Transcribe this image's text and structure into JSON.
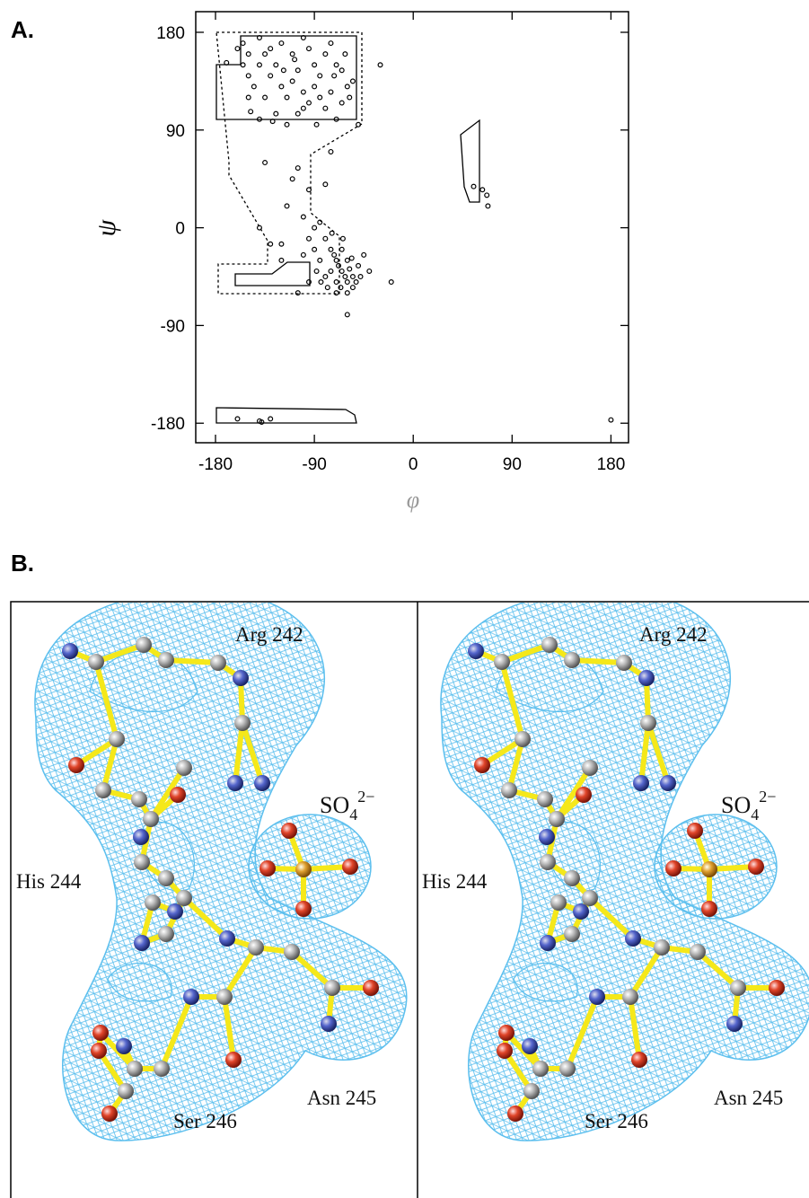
{
  "label_a": "A.",
  "label_b": "B.",
  "chart_data": {
    "type": "scatter",
    "x_label": "φ",
    "y_label": "ψ",
    "xlim": [
      -198,
      196
    ],
    "ylim": [
      -198,
      199
    ],
    "xticks": [
      -180,
      -90,
      0,
      90,
      180
    ],
    "yticks": [
      -180,
      -90,
      0,
      90,
      180
    ],
    "series": [
      {
        "color": "#000000",
        "x": [
          -155,
          -150,
          -140,
          -130,
          -125,
          -120,
          -110,
          -105,
          -100,
          -95,
          -90,
          -85,
          -80,
          -75,
          -70,
          -65,
          -60,
          -55,
          -150,
          -145,
          -140,
          -135,
          -130,
          -120,
          -115,
          -110,
          -100,
          -95,
          -90,
          -85,
          -80,
          -75,
          -70,
          -65,
          -140,
          -125,
          -115,
          -105,
          -100,
          -155,
          -170,
          -150,
          -160,
          -118,
          -108,
          -72,
          -62,
          -58,
          -50,
          -30,
          -135,
          -128,
          -88,
          -148,
          -135,
          -110,
          -95,
          -80,
          -115,
          -100,
          -90,
          -140,
          -120,
          -75,
          -105,
          -85,
          -80,
          -75,
          -70,
          -65,
          -60,
          -55,
          -50,
          -45,
          -70,
          -75,
          -65,
          -60,
          -55,
          -60,
          -70,
          -80,
          -85,
          -90,
          -95,
          -68,
          -62,
          -58,
          -52,
          -48,
          -66,
          -72,
          -78,
          -84,
          -20,
          -40,
          -60,
          -105,
          -120,
          -130,
          -100,
          -56,
          -64,
          -74,
          -88,
          -95,
          55,
          63,
          67,
          68,
          -160,
          -140,
          -138,
          -130,
          180
        ],
        "y": [
          170,
          160,
          175,
          165,
          150,
          170,
          160,
          145,
          175,
          165,
          150,
          140,
          160,
          170,
          150,
          145,
          130,
          135,
          140,
          130,
          150,
          120,
          140,
          130,
          120,
          135,
          125,
          115,
          130,
          120,
          110,
          125,
          100,
          115,
          100,
          105,
          95,
          105,
          110,
          150,
          152,
          120,
          165,
          145,
          155,
          140,
          160,
          120,
          95,
          150,
          160,
          98,
          95,
          107,
          60,
          45,
          35,
          40,
          20,
          10,
          0,
          0,
          -15,
          70,
          55,
          5,
          -10,
          -20,
          -30,
          -40,
          -50,
          -45,
          -35,
          -25,
          -50,
          -40,
          -20,
          -30,
          -55,
          -60,
          -60,
          -45,
          -30,
          -20,
          -10,
          -35,
          -45,
          -38,
          -50,
          -45,
          -55,
          -25,
          -55,
          -50,
          -50,
          -40,
          -80,
          -60,
          -30,
          -15,
          -25,
          -28,
          -10,
          -5,
          -40,
          -50,
          38,
          35,
          30,
          20,
          -176,
          -178,
          -179,
          -176,
          -177
        ]
      }
    ]
  },
  "panel_b": {
    "arg": "Arg 242",
    "his": "His 244",
    "ser": "Ser 246",
    "asn": "Asn 245",
    "so4": "SO",
    "so4_sub": "4",
    "so4_sup": "2−"
  }
}
